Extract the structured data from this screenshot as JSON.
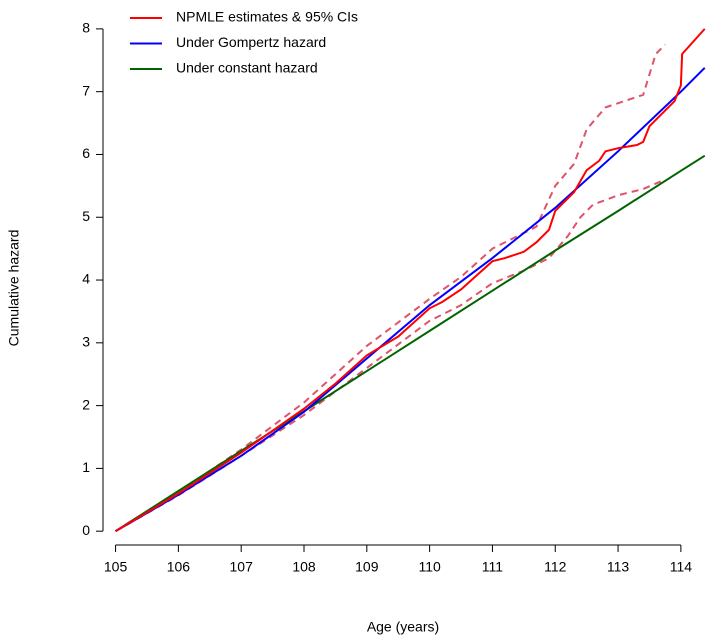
{
  "chart_data": {
    "type": "line",
    "xlabel": "Age (years)",
    "ylabel": "Cumulative hazard",
    "xlim": [
      104.8,
      114.4
    ],
    "ylim": [
      -0.22,
      8.46
    ],
    "xticks": [
      105,
      106,
      107,
      108,
      109,
      110,
      111,
      112,
      113,
      114
    ],
    "yticks": [
      0,
      1,
      2,
      3,
      4,
      5,
      6,
      7,
      8
    ],
    "legend": "top-left",
    "series": [
      {
        "name": "NPMLE estimates & 95% CIs",
        "color": "#ff0000",
        "x": [
          105,
          106,
          107,
          108,
          108.5,
          109,
          109.5,
          110,
          110.2,
          110.5,
          111,
          111.2,
          111.5,
          111.7,
          111.9,
          112.0,
          112.3,
          112.5,
          112.7,
          112.8,
          113.0,
          113.3,
          113.4,
          113.5,
          113.9,
          114.0,
          114.02,
          114.38
        ],
        "values": [
          0,
          0.6,
          1.25,
          1.95,
          2.35,
          2.8,
          3.1,
          3.55,
          3.65,
          3.85,
          4.3,
          4.35,
          4.45,
          4.6,
          4.8,
          5.1,
          5.4,
          5.75,
          5.9,
          6.05,
          6.1,
          6.15,
          6.2,
          6.45,
          6.85,
          7.1,
          7.6,
          8.0
        ]
      },
      {
        "name": "Under Gompertz hazard",
        "color": "#0000ff",
        "x": [
          105,
          106,
          107,
          108,
          109,
          110,
          111,
          112,
          113,
          114,
          114.38
        ],
        "values": [
          0,
          0.58,
          1.2,
          1.9,
          2.75,
          3.6,
          4.35,
          5.15,
          6.05,
          7.0,
          7.38
        ]
      },
      {
        "name": "Under constant hazard",
        "color": "#006400",
        "x": [
          105,
          106,
          107,
          108,
          109,
          110,
          111,
          112,
          113,
          114,
          114.38
        ],
        "values": [
          0,
          0.64,
          1.28,
          1.91,
          2.55,
          3.19,
          3.83,
          4.47,
          5.1,
          5.74,
          5.98
        ]
      }
    ],
    "ci": {
      "color": "#df536b",
      "upper": {
        "x": [
          105,
          106,
          107,
          108,
          109,
          110,
          110.5,
          111,
          111.3,
          111.7,
          112,
          112.3,
          112.5,
          112.8,
          113.4,
          113.6,
          113.75
        ],
        "values": [
          0,
          0.62,
          1.3,
          2.05,
          2.95,
          3.7,
          4.05,
          4.5,
          4.65,
          4.85,
          5.5,
          5.85,
          6.4,
          6.75,
          6.95,
          7.6,
          7.75
        ]
      },
      "lower": {
        "x": [
          105,
          106,
          107,
          108,
          109,
          110,
          110.5,
          111,
          111.5,
          111.9,
          112.2,
          112.4,
          112.6,
          113,
          113.4,
          113.75
        ],
        "values": [
          0,
          0.57,
          1.2,
          1.85,
          2.6,
          3.35,
          3.6,
          3.95,
          4.15,
          4.35,
          4.7,
          5.0,
          5.2,
          5.35,
          5.45,
          5.6
        ]
      }
    }
  }
}
